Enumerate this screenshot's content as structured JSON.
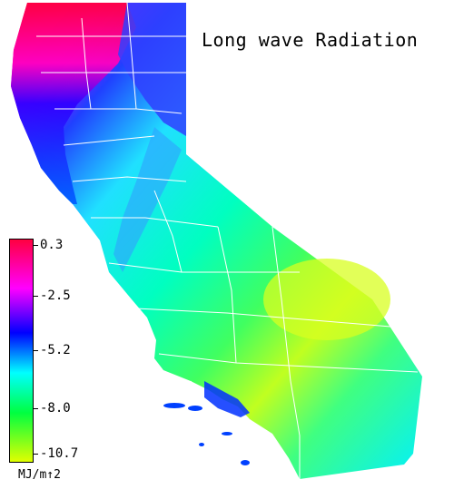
{
  "map": {
    "title": "Long wave Radiation",
    "region": "California",
    "colors": {
      "hot": "#ff0040",
      "magenta": "#ff00ff",
      "violet": "#8000ff",
      "blue": "#0000ff",
      "cyan": "#00ffff",
      "green": "#00ff40",
      "yellow": "#e0ff00",
      "boundary": "#ffffff"
    }
  },
  "legend": {
    "ticks": [
      "0.3",
      "-2.5",
      "-5.2",
      "-8.0",
      "-10.7"
    ],
    "unit": "MJ/m↑2",
    "range": [
      0.3,
      -10.7
    ]
  }
}
